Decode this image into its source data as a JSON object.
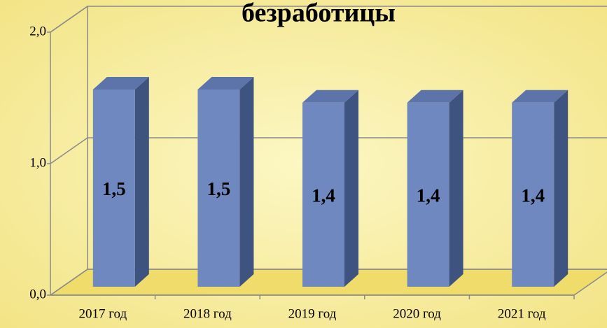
{
  "chart_data": {
    "type": "bar3d",
    "title": "безработицы",
    "categories": [
      "2017 год",
      "2018 год",
      "2019 год",
      "2020 год",
      "2021 год"
    ],
    "values": [
      1.5,
      1.5,
      1.4,
      1.4,
      1.4
    ],
    "value_labels": [
      "1,5",
      "1,5",
      "1,4",
      "1,4",
      "1,4"
    ],
    "color": "#7088c0",
    "ylim": [
      0,
      2
    ],
    "yticks": [
      {
        "value": 0,
        "label": "0,0"
      },
      {
        "value": 1,
        "label": "1,0"
      },
      {
        "value": 2,
        "label": "2,0"
      }
    ],
    "grid": true
  }
}
